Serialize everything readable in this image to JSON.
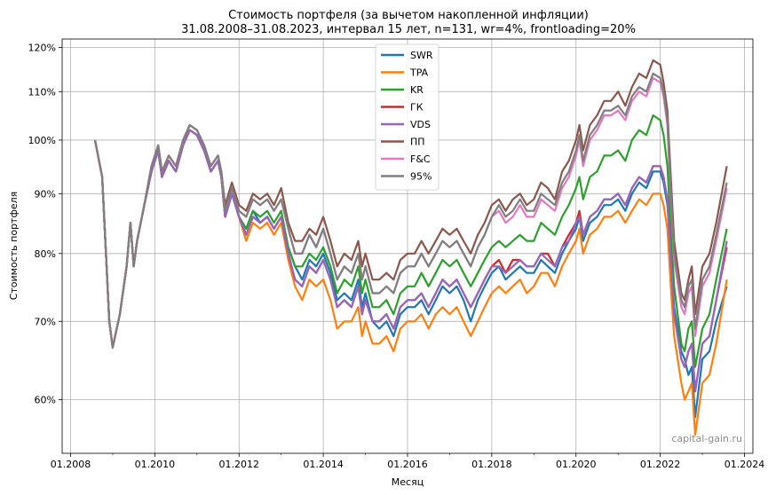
{
  "chart_data": {
    "type": "line",
    "title": "Стоимость портфеля (за вычетом накопленной инфляции)",
    "subtitle": "31.08.2008–31.08.2023, интервал 15 лет, n=131, wr=4%, frontloading=20%",
    "xlabel": "Месяц",
    "ylabel": "Стоимость портфеля",
    "y_scale": "log",
    "ylim": [
      0.54,
      1.22
    ],
    "xlim": [
      2007.8,
      2024.2
    ],
    "grid": true,
    "legend_position": "top-center",
    "x_ticks": [
      "01.2008",
      "01.2010",
      "01.2012",
      "01.2014",
      "01.2016",
      "01.2018",
      "01.2020",
      "01.2022",
      "01.2024"
    ],
    "y_ticks": [
      "60%",
      "70%",
      "80%",
      "90%",
      "100%",
      "110%",
      "120%"
    ],
    "watermark": "capital-gain.ru",
    "colors": {
      "SWR": "#1f77b4",
      "TPA": "#ff7f0e",
      "KR": "#2ca02c",
      "ГК": "#d62728",
      "VDS": "#9467bd",
      "ПП": "#8c564b",
      "F&C": "#e377c2",
      "95%": "#7f7f7f"
    },
    "x": [
      2008.58,
      2008.75,
      2008.92,
      2009.0,
      2009.17,
      2009.33,
      2009.42,
      2009.5,
      2009.58,
      2009.75,
      2009.92,
      2010.08,
      2010.17,
      2010.33,
      2010.5,
      2010.67,
      2010.83,
      2011.0,
      2011.17,
      2011.33,
      2011.5,
      2011.58,
      2011.67,
      2011.83,
      2012.0,
      2012.17,
      2012.33,
      2012.5,
      2012.67,
      2012.83,
      2013.0,
      2013.17,
      2013.33,
      2013.5,
      2013.67,
      2013.83,
      2014.0,
      2014.17,
      2014.33,
      2014.5,
      2014.67,
      2014.83,
      2014.92,
      2015.0,
      2015.17,
      2015.33,
      2015.5,
      2015.67,
      2015.83,
      2016.0,
      2016.17,
      2016.33,
      2016.5,
      2016.67,
      2016.83,
      2017.0,
      2017.17,
      2017.33,
      2017.5,
      2017.67,
      2017.83,
      2018.0,
      2018.17,
      2018.33,
      2018.5,
      2018.67,
      2018.83,
      2019.0,
      2019.17,
      2019.33,
      2019.5,
      2019.67,
      2019.83,
      2020.0,
      2020.08,
      2020.17,
      2020.33,
      2020.5,
      2020.67,
      2020.83,
      2021.0,
      2021.17,
      2021.33,
      2021.5,
      2021.67,
      2021.83,
      2022.0,
      2022.08,
      2022.17,
      2022.25,
      2022.33,
      2022.5,
      2022.58,
      2022.67,
      2022.75,
      2022.83,
      2023.0,
      2023.17,
      2023.33,
      2023.58
    ],
    "series": [
      {
        "name": "SWR",
        "values": [
          1.0,
          0.93,
          0.7,
          0.665,
          0.71,
          0.78,
          0.85,
          0.78,
          0.82,
          0.88,
          0.94,
          0.98,
          0.93,
          0.96,
          0.94,
          0.99,
          1.02,
          1.01,
          0.98,
          0.94,
          0.96,
          0.93,
          0.86,
          0.9,
          0.86,
          0.84,
          0.87,
          0.85,
          0.86,
          0.84,
          0.86,
          0.81,
          0.78,
          0.76,
          0.79,
          0.78,
          0.8,
          0.77,
          0.73,
          0.74,
          0.73,
          0.76,
          0.72,
          0.74,
          0.7,
          0.69,
          0.7,
          0.68,
          0.71,
          0.72,
          0.72,
          0.73,
          0.71,
          0.73,
          0.75,
          0.74,
          0.75,
          0.73,
          0.7,
          0.73,
          0.75,
          0.77,
          0.78,
          0.76,
          0.77,
          0.78,
          0.77,
          0.77,
          0.79,
          0.78,
          0.77,
          0.8,
          0.82,
          0.84,
          0.86,
          0.82,
          0.85,
          0.86,
          0.88,
          0.88,
          0.89,
          0.87,
          0.9,
          0.92,
          0.91,
          0.94,
          0.94,
          0.92,
          0.88,
          0.8,
          0.72,
          0.66,
          0.65,
          0.63,
          0.64,
          0.58,
          0.65,
          0.66,
          0.7,
          0.75
        ]
      },
      {
        "name": "TPA",
        "values": [
          1.0,
          0.93,
          0.7,
          0.665,
          0.71,
          0.78,
          0.85,
          0.78,
          0.82,
          0.88,
          0.94,
          0.98,
          0.93,
          0.96,
          0.94,
          0.99,
          1.02,
          1.01,
          0.98,
          0.94,
          0.96,
          0.93,
          0.86,
          0.9,
          0.86,
          0.82,
          0.85,
          0.84,
          0.85,
          0.83,
          0.85,
          0.79,
          0.75,
          0.73,
          0.76,
          0.75,
          0.76,
          0.73,
          0.69,
          0.7,
          0.7,
          0.72,
          0.68,
          0.7,
          0.67,
          0.67,
          0.68,
          0.66,
          0.69,
          0.7,
          0.7,
          0.71,
          0.69,
          0.71,
          0.72,
          0.71,
          0.72,
          0.7,
          0.68,
          0.7,
          0.72,
          0.74,
          0.75,
          0.74,
          0.75,
          0.76,
          0.74,
          0.75,
          0.77,
          0.77,
          0.75,
          0.78,
          0.8,
          0.82,
          0.84,
          0.8,
          0.83,
          0.84,
          0.86,
          0.86,
          0.87,
          0.85,
          0.87,
          0.89,
          0.88,
          0.9,
          0.9,
          0.88,
          0.84,
          0.75,
          0.68,
          0.62,
          0.6,
          0.61,
          0.62,
          0.56,
          0.62,
          0.63,
          0.67,
          0.76
        ]
      },
      {
        "name": "KR",
        "values": [
          1.0,
          0.93,
          0.7,
          0.665,
          0.71,
          0.78,
          0.85,
          0.78,
          0.82,
          0.88,
          0.94,
          0.98,
          0.93,
          0.96,
          0.94,
          0.99,
          1.02,
          1.01,
          0.98,
          0.94,
          0.96,
          0.93,
          0.86,
          0.9,
          0.86,
          0.84,
          0.87,
          0.86,
          0.87,
          0.85,
          0.87,
          0.81,
          0.78,
          0.78,
          0.8,
          0.79,
          0.81,
          0.78,
          0.74,
          0.76,
          0.75,
          0.78,
          0.74,
          0.76,
          0.72,
          0.72,
          0.73,
          0.71,
          0.74,
          0.75,
          0.75,
          0.77,
          0.75,
          0.77,
          0.79,
          0.78,
          0.79,
          0.77,
          0.75,
          0.77,
          0.79,
          0.81,
          0.82,
          0.81,
          0.82,
          0.83,
          0.82,
          0.82,
          0.85,
          0.84,
          0.83,
          0.86,
          0.88,
          0.91,
          0.93,
          0.89,
          0.93,
          0.94,
          0.97,
          0.97,
          0.98,
          0.96,
          1.0,
          1.02,
          1.01,
          1.05,
          1.04,
          1.01,
          0.95,
          0.84,
          0.75,
          0.67,
          0.66,
          0.69,
          0.7,
          0.64,
          0.69,
          0.71,
          0.76,
          0.84
        ]
      },
      {
        "name": "ГК",
        "values": [
          1.0,
          0.93,
          0.7,
          0.665,
          0.71,
          0.78,
          0.85,
          0.78,
          0.82,
          0.88,
          0.94,
          0.98,
          0.93,
          0.96,
          0.94,
          0.99,
          1.02,
          1.01,
          0.98,
          0.94,
          0.96,
          0.93,
          0.86,
          0.9,
          0.86,
          0.83,
          0.86,
          0.85,
          0.86,
          0.84,
          0.86,
          0.8,
          0.76,
          0.75,
          0.78,
          0.77,
          0.79,
          0.76,
          0.72,
          0.73,
          0.72,
          0.75,
          0.71,
          0.73,
          0.7,
          0.7,
          0.71,
          0.69,
          0.72,
          0.73,
          0.73,
          0.74,
          0.72,
          0.74,
          0.76,
          0.75,
          0.76,
          0.74,
          0.72,
          0.74,
          0.76,
          0.78,
          0.79,
          0.77,
          0.79,
          0.79,
          0.78,
          0.78,
          0.8,
          0.8,
          0.78,
          0.81,
          0.83,
          0.85,
          0.87,
          0.83,
          0.86,
          0.87,
          0.89,
          0.89,
          0.9,
          0.88,
          0.91,
          0.93,
          0.92,
          0.95,
          0.95,
          0.93,
          0.89,
          0.79,
          0.71,
          0.65,
          0.64,
          0.66,
          0.67,
          0.61,
          0.67,
          0.68,
          0.73,
          0.81
        ]
      },
      {
        "name": "VDS",
        "values": [
          1.0,
          0.93,
          0.7,
          0.665,
          0.71,
          0.78,
          0.85,
          0.78,
          0.82,
          0.88,
          0.94,
          0.98,
          0.93,
          0.96,
          0.94,
          0.99,
          1.02,
          1.01,
          0.98,
          0.94,
          0.96,
          0.93,
          0.86,
          0.9,
          0.86,
          0.83,
          0.86,
          0.85,
          0.86,
          0.84,
          0.86,
          0.8,
          0.76,
          0.75,
          0.78,
          0.77,
          0.79,
          0.76,
          0.72,
          0.73,
          0.72,
          0.75,
          0.71,
          0.73,
          0.7,
          0.7,
          0.71,
          0.69,
          0.72,
          0.73,
          0.73,
          0.74,
          0.72,
          0.74,
          0.76,
          0.75,
          0.76,
          0.74,
          0.72,
          0.74,
          0.76,
          0.78,
          0.78,
          0.77,
          0.78,
          0.79,
          0.78,
          0.78,
          0.8,
          0.79,
          0.78,
          0.81,
          0.82,
          0.85,
          0.86,
          0.83,
          0.86,
          0.87,
          0.89,
          0.89,
          0.9,
          0.88,
          0.91,
          0.93,
          0.92,
          0.95,
          0.95,
          0.93,
          0.89,
          0.79,
          0.71,
          0.65,
          0.64,
          0.66,
          0.67,
          0.61,
          0.67,
          0.68,
          0.73,
          0.82
        ]
      },
      {
        "name": "ПП",
        "values": [
          1.0,
          0.93,
          0.7,
          0.665,
          0.71,
          0.78,
          0.85,
          0.78,
          0.82,
          0.88,
          0.95,
          0.99,
          0.94,
          0.97,
          0.95,
          1.0,
          1.03,
          1.02,
          0.99,
          0.95,
          0.97,
          0.94,
          0.88,
          0.92,
          0.88,
          0.87,
          0.9,
          0.89,
          0.9,
          0.88,
          0.91,
          0.85,
          0.82,
          0.82,
          0.84,
          0.83,
          0.86,
          0.82,
          0.78,
          0.8,
          0.79,
          0.82,
          0.78,
          0.8,
          0.76,
          0.76,
          0.77,
          0.76,
          0.79,
          0.8,
          0.8,
          0.82,
          0.8,
          0.82,
          0.84,
          0.83,
          0.84,
          0.82,
          0.8,
          0.83,
          0.85,
          0.88,
          0.89,
          0.87,
          0.89,
          0.9,
          0.88,
          0.89,
          0.92,
          0.91,
          0.89,
          0.94,
          0.96,
          1.0,
          1.03,
          0.98,
          1.03,
          1.05,
          1.08,
          1.08,
          1.1,
          1.07,
          1.11,
          1.14,
          1.13,
          1.17,
          1.16,
          1.12,
          1.06,
          0.93,
          0.82,
          0.74,
          0.73,
          0.76,
          0.78,
          0.71,
          0.78,
          0.8,
          0.85,
          0.95
        ]
      },
      {
        "name": "F&C",
        "values": [
          1.0,
          0.93,
          0.7,
          0.665,
          0.71,
          0.78,
          0.85,
          0.78,
          0.82,
          0.88,
          0.95,
          0.99,
          0.94,
          0.97,
          0.95,
          1.0,
          1.03,
          1.02,
          0.99,
          0.95,
          0.97,
          0.94,
          0.87,
          0.91,
          0.87,
          0.86,
          0.89,
          0.88,
          0.89,
          0.87,
          0.89,
          0.84,
          0.8,
          0.8,
          0.83,
          0.81,
          0.84,
          0.8,
          0.76,
          0.78,
          0.77,
          0.8,
          0.76,
          0.78,
          0.74,
          0.74,
          0.75,
          0.74,
          0.77,
          0.78,
          0.78,
          0.8,
          0.78,
          0.8,
          0.82,
          0.81,
          0.82,
          0.8,
          0.78,
          0.81,
          0.83,
          0.86,
          0.87,
          0.85,
          0.86,
          0.88,
          0.86,
          0.86,
          0.89,
          0.88,
          0.87,
          0.91,
          0.93,
          0.97,
          1.0,
          0.95,
          1.0,
          1.02,
          1.05,
          1.05,
          1.06,
          1.04,
          1.08,
          1.1,
          1.09,
          1.13,
          1.12,
          1.09,
          1.03,
          0.89,
          0.79,
          0.72,
          0.71,
          0.74,
          0.75,
          0.68,
          0.75,
          0.77,
          0.82,
          0.91
        ]
      },
      {
        "name": "95%",
        "values": [
          1.0,
          0.93,
          0.7,
          0.665,
          0.71,
          0.78,
          0.85,
          0.78,
          0.82,
          0.88,
          0.95,
          0.99,
          0.94,
          0.97,
          0.95,
          1.0,
          1.03,
          1.02,
          0.99,
          0.95,
          0.97,
          0.94,
          0.87,
          0.91,
          0.87,
          0.86,
          0.89,
          0.88,
          0.89,
          0.87,
          0.89,
          0.84,
          0.8,
          0.8,
          0.83,
          0.81,
          0.84,
          0.8,
          0.76,
          0.78,
          0.77,
          0.8,
          0.76,
          0.78,
          0.74,
          0.74,
          0.75,
          0.74,
          0.77,
          0.78,
          0.78,
          0.8,
          0.78,
          0.8,
          0.82,
          0.81,
          0.82,
          0.8,
          0.78,
          0.81,
          0.83,
          0.86,
          0.88,
          0.86,
          0.87,
          0.89,
          0.87,
          0.87,
          0.9,
          0.89,
          0.88,
          0.92,
          0.94,
          0.98,
          1.01,
          0.96,
          1.01,
          1.03,
          1.06,
          1.06,
          1.07,
          1.05,
          1.09,
          1.11,
          1.1,
          1.14,
          1.13,
          1.1,
          1.04,
          0.9,
          0.8,
          0.73,
          0.72,
          0.75,
          0.76,
          0.69,
          0.76,
          0.78,
          0.83,
          0.92
        ]
      }
    ]
  }
}
